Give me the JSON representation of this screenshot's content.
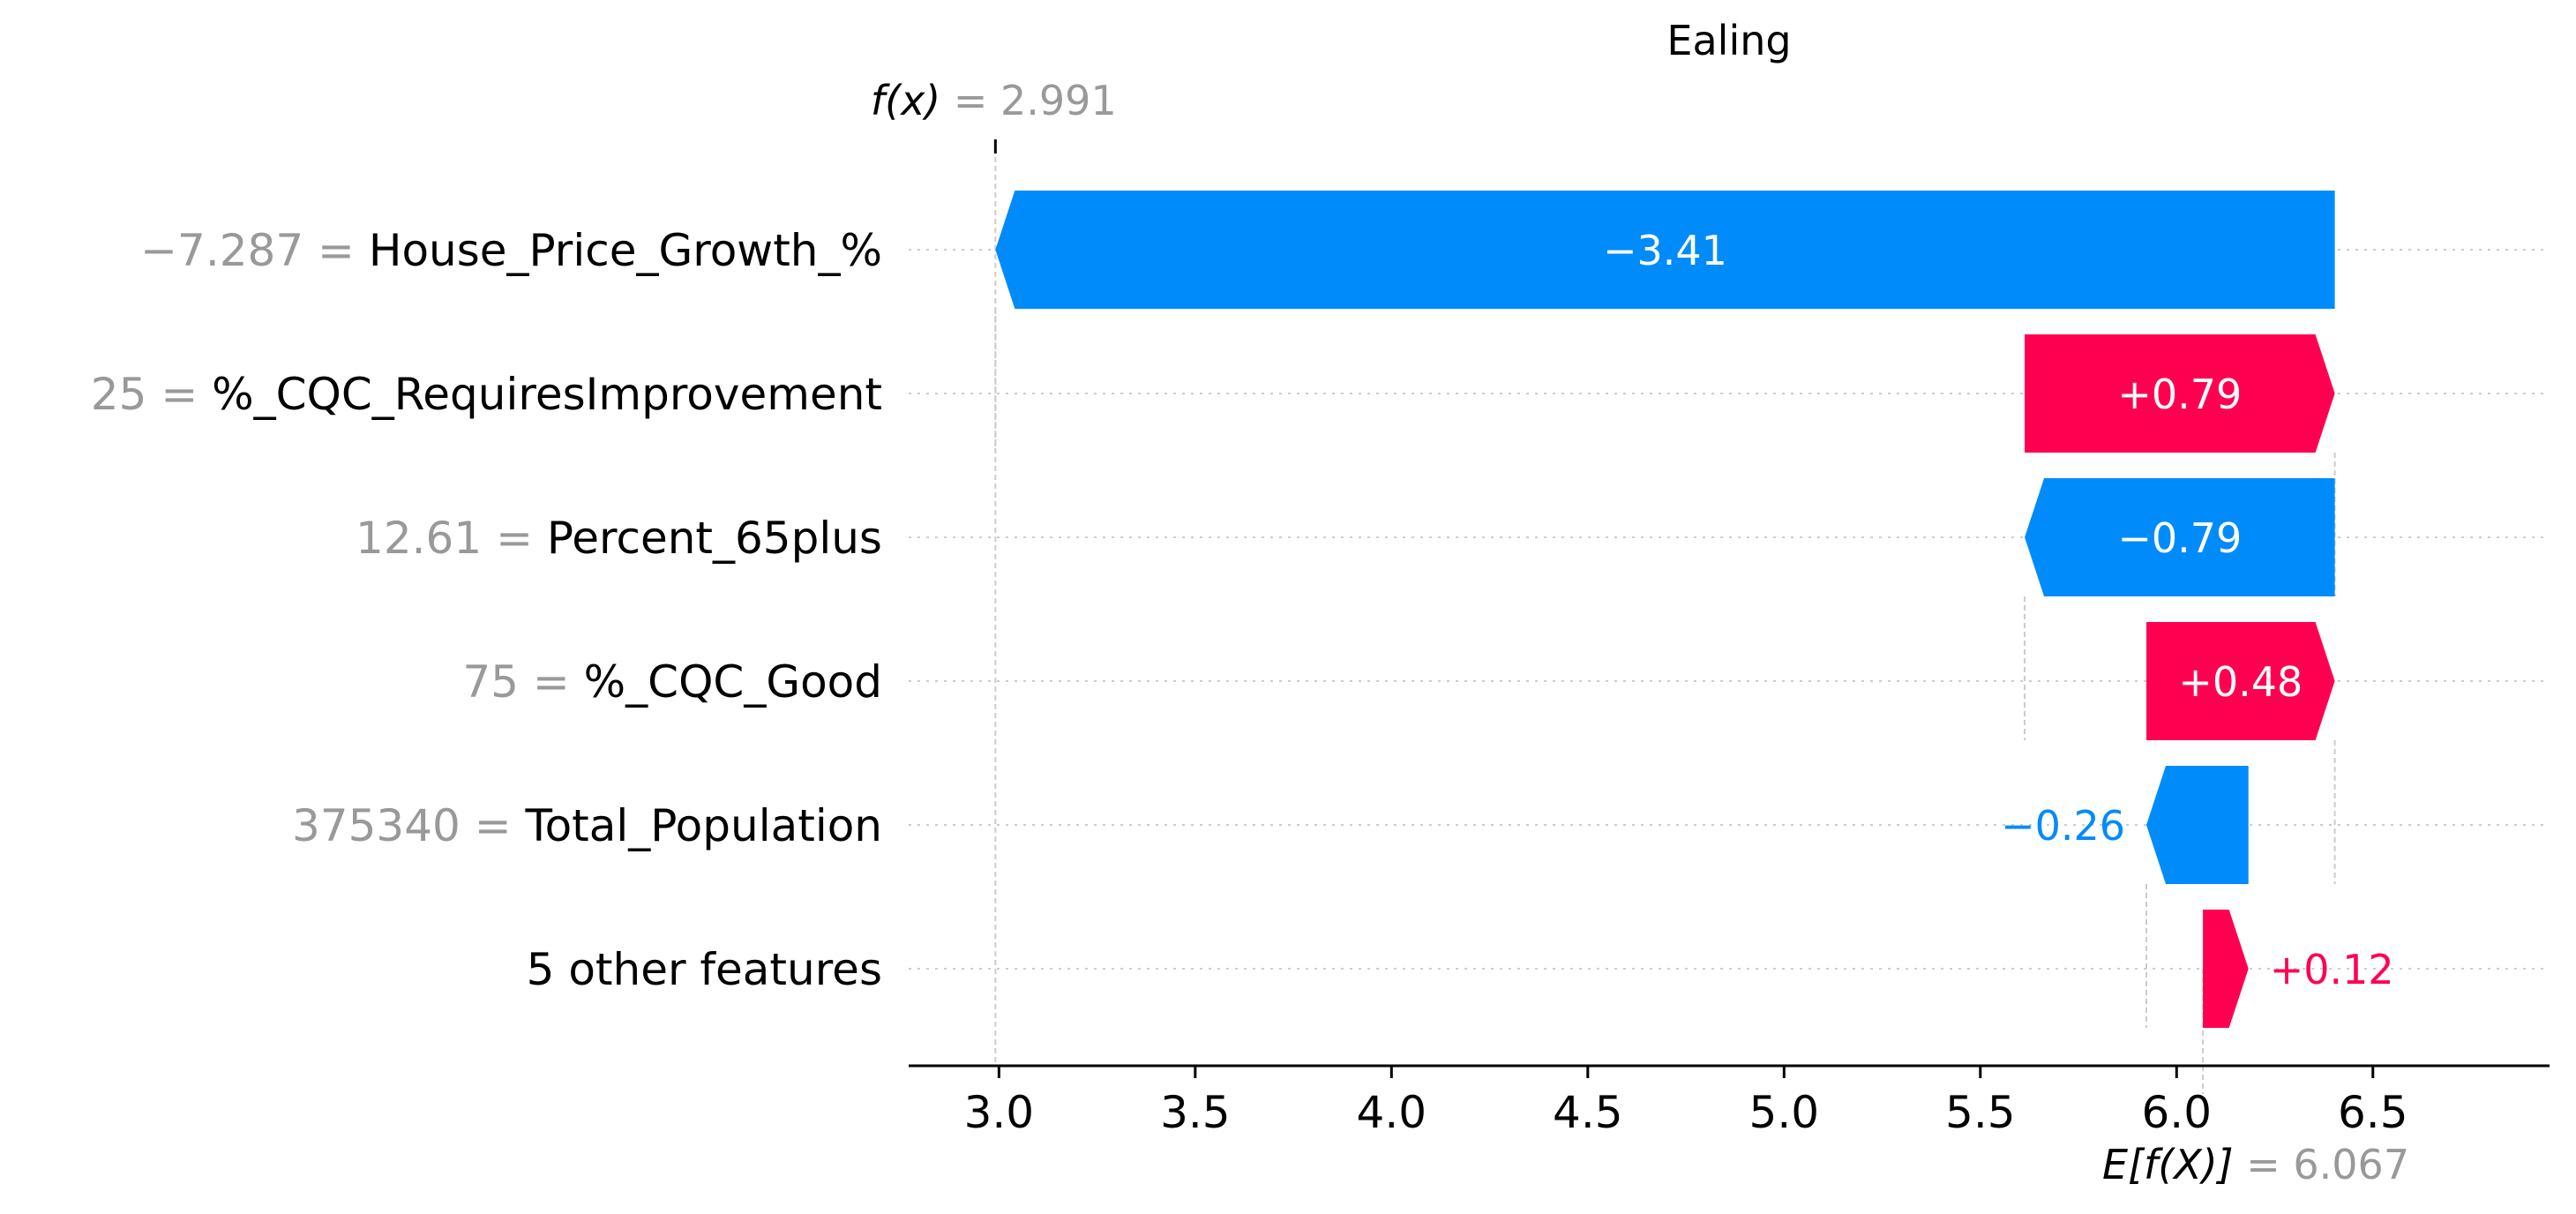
{
  "chart_data": {
    "type": "waterfall",
    "title": "Ealing",
    "xlim": [
      2.77,
      6.95
    ],
    "xticks": [
      3.0,
      3.5,
      4.0,
      4.5,
      5.0,
      5.5,
      6.0,
      6.5
    ],
    "xtick_labels": [
      "3.0",
      "3.5",
      "4.0",
      "4.5",
      "5.0",
      "5.5",
      "6.0",
      "6.5"
    ],
    "fx": {
      "label": "f(x)",
      "eq": "=",
      "value": 2.991,
      "value_label": "2.991"
    },
    "base": {
      "label": "E[f(X)]",
      "eq": "=",
      "value": 6.067,
      "value_label": "6.067"
    },
    "features": [
      {
        "value_label": "−7.287",
        "eq": "=",
        "name": "House_Price_Growth_%",
        "shap": -3.41,
        "shap_label": "−3.41",
        "start": 6.403,
        "end": 2.991
      },
      {
        "value_label": "25",
        "eq": "=",
        "name": "%_CQC_RequiresImprovement",
        "shap": 0.79,
        "shap_label": "+0.79",
        "start": 5.613,
        "end": 6.403
      },
      {
        "value_label": "12.61",
        "eq": "=",
        "name": "Percent_65plus",
        "shap": -0.79,
        "shap_label": "−0.79",
        "start": 6.403,
        "end": 5.613
      },
      {
        "value_label": "75",
        "eq": "=",
        "name": "%_CQC_Good",
        "shap": 0.48,
        "shap_label": "+0.48",
        "start": 5.923,
        "end": 6.403
      },
      {
        "value_label": "375340",
        "eq": "=",
        "name": "Total_Population",
        "shap": -0.26,
        "shap_label": "−0.26",
        "start": 6.183,
        "end": 5.923
      },
      {
        "value_label": "",
        "eq": "",
        "name": "5 other features",
        "shap": 0.12,
        "shap_label": "+0.12",
        "start": 6.067,
        "end": 6.183
      }
    ],
    "colors": {
      "positive": "#ff0051",
      "negative": "#008bfb",
      "axis": "#000000",
      "muted": "#999999",
      "grid": "#cccccc",
      "label_inside": "#ffffff"
    }
  }
}
